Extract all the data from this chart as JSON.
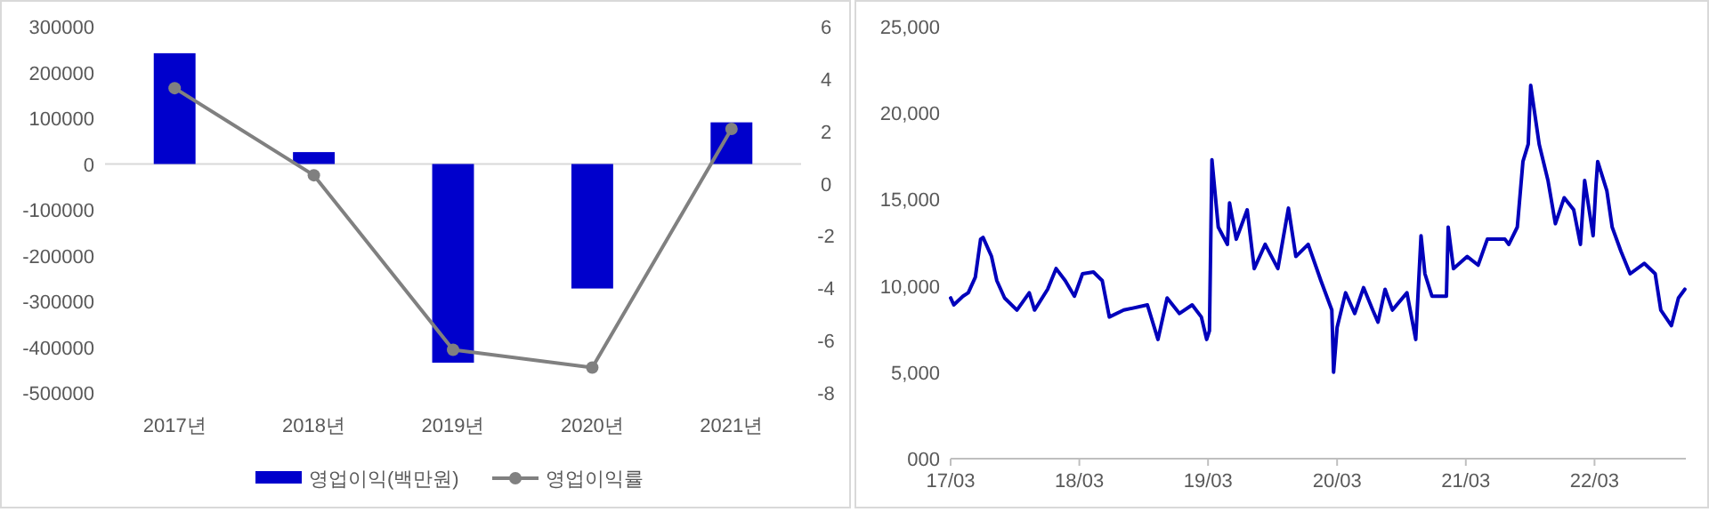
{
  "chart_data": [
    {
      "type": "bar",
      "categories": [
        "2017년",
        "2018년",
        "2019년",
        "2020년",
        "2021년"
      ],
      "series": [
        {
          "name": "영업이익(백만원)",
          "color": "#0000cc",
          "values": [
            242000,
            26000,
            -434000,
            -272000,
            91000
          ]
        },
        {
          "name": "영업이익률",
          "type": "line",
          "axis": "y2",
          "color": "#808080",
          "marker": "circle",
          "values": [
            3.65,
            0.32,
            -6.35,
            -7.03,
            2.09
          ]
        }
      ],
      "ylim": [
        -500000,
        300000
      ],
      "yticks": [
        -500000,
        -400000,
        -300000,
        -200000,
        -100000,
        0,
        100000,
        200000,
        300000
      ],
      "y2lim": [
        -8,
        6
      ],
      "y2ticks": [
        -8,
        -6,
        -4,
        -2,
        0,
        2,
        4,
        6
      ],
      "ref_lines": [
        {
          "axis": "y",
          "value": 0,
          "color": "#d9d9d9"
        }
      ],
      "grid": false,
      "legend": "bottom"
    },
    {
      "type": "line",
      "series": [
        {
          "color": "#0000bb",
          "x": [
            "2017-03-01",
            "2017-03-10",
            "2017-04-05",
            "2017-04-20",
            "2017-05-10",
            "2017-05-25",
            "2017-06-01",
            "2017-06-25",
            "2017-07-10",
            "2017-08-01",
            "2017-09-05",
            "2017-10-10",
            "2017-10-25",
            "2017-12-01",
            "2017-12-25",
            "2018-01-20",
            "2018-02-15",
            "2018-03-10",
            "2018-04-10",
            "2018-05-05",
            "2018-05-25",
            "2018-07-05",
            "2018-09-10",
            "2018-10-10",
            "2018-11-05",
            "2018-12-10",
            "2019-01-15",
            "2019-02-10",
            "2019-02-25",
            "2019-03-05",
            "2019-03-12",
            "2019-03-30",
            "2019-04-25",
            "2019-05-01",
            "2019-05-20",
            "2019-06-20",
            "2019-07-10",
            "2019-08-10",
            "2019-09-15",
            "2019-10-15",
            "2019-11-05",
            "2019-12-10",
            "2020-01-15",
            "2020-02-15",
            "2020-02-20",
            "2020-03-01",
            "2020-03-25",
            "2020-04-20",
            "2020-05-15",
            "2020-06-10",
            "2020-06-25",
            "2020-07-15",
            "2020-08-05",
            "2020-09-15",
            "2020-10-10",
            "2020-10-25",
            "2020-11-05",
            "2020-11-25",
            "2021-01-05",
            "2021-01-10",
            "2021-01-25",
            "2021-03-05",
            "2021-04-05",
            "2021-05-01",
            "2021-06-20",
            "2021-07-01",
            "2021-07-25",
            "2021-08-10",
            "2021-08-25",
            "2021-09-01",
            "2021-09-25",
            "2021-10-20",
            "2021-11-10",
            "2021-12-05",
            "2022-01-01",
            "2022-01-20",
            "2022-02-01",
            "2022-02-25",
            "2022-03-05",
            "2022-03-10",
            "2022-04-05",
            "2022-04-20",
            "2022-05-15",
            "2022-06-10",
            "2022-07-20",
            "2022-08-20",
            "2022-09-05",
            "2022-10-05",
            "2022-10-25",
            "2022-11-12"
          ],
          "values": [
            9300,
            8900,
            9400,
            9600,
            10500,
            12700,
            12800,
            11700,
            10300,
            9300,
            8600,
            9600,
            8600,
            9800,
            11000,
            10300,
            9400,
            10700,
            10800,
            10300,
            8200,
            8600,
            8900,
            6900,
            9300,
            8400,
            8900,
            8200,
            6900,
            7400,
            17300,
            13400,
            12400,
            14800,
            12700,
            14400,
            11000,
            12400,
            11000,
            14500,
            11700,
            12400,
            10300,
            8600,
            5000,
            7600,
            9600,
            8400,
            9900,
            8600,
            7900,
            9800,
            8600,
            9600,
            6900,
            12900,
            10700,
            9400,
            9400,
            13400,
            11000,
            11700,
            11200,
            12700,
            12700,
            12400,
            13400,
            17200,
            18200,
            21600,
            18200,
            16100,
            13600,
            15100,
            14400,
            12400,
            16100,
            12900,
            15800,
            17200,
            15500,
            13400,
            12000,
            10700,
            11300,
            10700,
            8600,
            7700,
            9300,
            9800
          ]
        }
      ],
      "xlim": [
        "2017-03-01",
        "2022-11-15"
      ],
      "xticks": [
        {
          "value": "2017-03-01",
          "label": "17/03"
        },
        {
          "value": "2018-03-01",
          "label": "18/03"
        },
        {
          "value": "2019-03-01",
          "label": "19/03"
        },
        {
          "value": "2020-03-01",
          "label": "20/03"
        },
        {
          "value": "2021-03-01",
          "label": "21/03"
        },
        {
          "value": "2022-03-01",
          "label": "22/03"
        }
      ],
      "ylim": [
        0,
        25000
      ],
      "yticks": [
        {
          "value": 0,
          "label": "000"
        },
        {
          "value": 5000,
          "label": "5,000"
        },
        {
          "value": 10000,
          "label": "10,000"
        },
        {
          "value": 15000,
          "label": "15,000"
        },
        {
          "value": 20000,
          "label": "20,000"
        },
        {
          "value": 25000,
          "label": "25,000"
        }
      ],
      "grid": false
    }
  ]
}
